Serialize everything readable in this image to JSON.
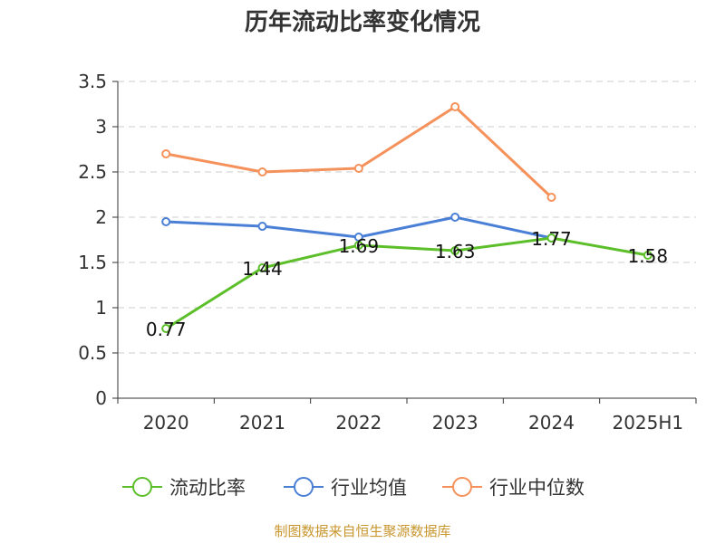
{
  "chart_data": {
    "type": "line",
    "title": "历年流动比率变化情况",
    "categories": [
      "2020",
      "2021",
      "2022",
      "2023",
      "2024",
      "2025H1"
    ],
    "ylim": [
      0,
      3.5
    ],
    "yticks": [
      "0",
      "0.5",
      "1",
      "1.5",
      "2",
      "2.5",
      "3",
      "3.5"
    ],
    "grid": true,
    "legend_position": "bottom",
    "series": [
      {
        "name": "流动比率",
        "color": "#5cbf2a",
        "values": [
          0.77,
          1.44,
          1.69,
          1.63,
          1.77,
          1.58
        ],
        "labels": [
          "0.77",
          "1.44",
          "1.69",
          "1.63",
          "1.77",
          "1.58"
        ]
      },
      {
        "name": "行业均值",
        "color": "#4a7fd6",
        "values": [
          1.95,
          1.9,
          1.78,
          2.0,
          1.77,
          null
        ]
      },
      {
        "name": "行业中位数",
        "color": "#f5915a",
        "values": [
          2.7,
          2.5,
          2.54,
          3.22,
          2.22,
          null
        ]
      }
    ],
    "source": "制图数据来自恒生聚源数据库"
  }
}
